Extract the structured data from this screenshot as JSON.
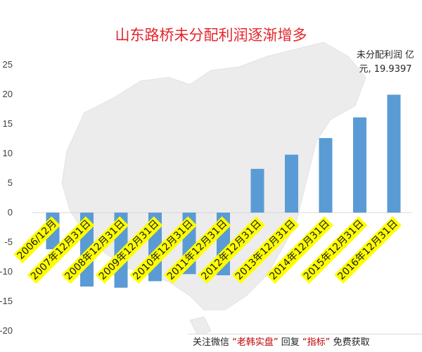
{
  "chart_data": {
    "type": "bar",
    "title": "山东路桥未分配利润逐渐增多",
    "categories": [
      "2006/12月",
      "2007年12月31日",
      "2008年12月31日",
      "2009年12月31日",
      "2010年12月31日",
      "2011年12月31日",
      "2012年12月31日",
      "2013年12月31日",
      "2014年12月31日",
      "2015年12月31日",
      "2016年12月31日"
    ],
    "series": [
      {
        "values": [
          -6.2,
          -12.5,
          -12.7,
          -11.6,
          -10.4,
          -10.6,
          7.4,
          9.8,
          12.6,
          16.1,
          19.9397
        ]
      }
    ],
    "yticks": [
      "25",
      "20",
      "15",
      "10",
      "5",
      "0",
      "-5",
      "-10",
      "-15",
      "-20"
    ],
    "ylim": [
      -20,
      25
    ],
    "bar_color": "#5b9bd5",
    "label_highlight_color": "#ffff00",
    "callout": {
      "line1": "未分配利润 亿",
      "line2": "元, 19.9397"
    },
    "grid": false,
    "legend": "none"
  },
  "footer": {
    "prefix": "关注微信",
    "brand": "“老韩实盘”",
    "middle": "回复",
    "keyword": "“指标”",
    "suffix": "免费获取"
  }
}
